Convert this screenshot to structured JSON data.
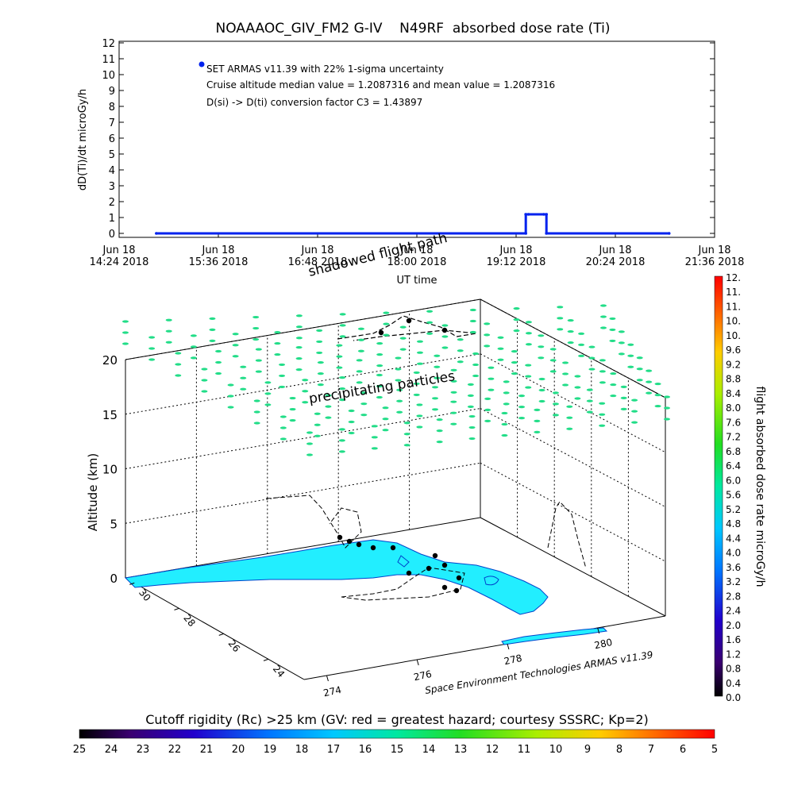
{
  "chart_data": [
    {
      "type": "line",
      "title": "NOAAAOC_GIV_FM2 G-IV    N49RF  absorbed dose rate (Ti)",
      "ylabel": "dD(Ti)/dt microGy/h",
      "xlabel": "UT time",
      "ylim": [
        0,
        12
      ],
      "yticks": [
        0,
        1,
        2,
        3,
        4,
        5,
        6,
        7,
        8,
        9,
        10,
        11,
        12
      ],
      "xlim": [
        0,
        432
      ],
      "xticks": [
        {
          "minute": 0,
          "line1": "Jun 18",
          "line2": "14:24 2018"
        },
        {
          "minute": 72,
          "line1": "Jun 18",
          "line2": "15:36 2018"
        },
        {
          "minute": 144,
          "line1": "Jun 18",
          "line2": "16:48 2018"
        },
        {
          "minute": 216,
          "line1": "Jun 18",
          "line2": "18:00 2018"
        },
        {
          "minute": 288,
          "line1": "Jun 18",
          "line2": "19:12 2018"
        },
        {
          "minute": 360,
          "line1": "Jun 18",
          "line2": "20:24 2018"
        },
        {
          "minute": 432,
          "line1": "Jun 18",
          "line2": "21:36 2018"
        }
      ],
      "series": [
        {
          "color": "#0022ee",
          "x": [
            27,
            295,
            295,
            297,
            308,
            310,
            310,
            399
          ],
          "y": [
            0,
            0,
            1.2,
            1.2,
            1.2,
            1.2,
            0,
            0
          ]
        }
      ],
      "annotations": [
        "SET ARMAS v11.39 with 22% 1-sigma uncertainty",
        "Cruise altitude median value = 1.2087316 and mean value = 1.2087316",
        "D(si) -> D(ti) conversion factor C3 = 1.43897"
      ],
      "legend_marker_color": "#0022ee"
    },
    {
      "type": "scatter",
      "zlabel": "Altitude (km)",
      "zticks": [
        0,
        5,
        10,
        15,
        20
      ],
      "lat_ticks": [
        "30",
        "28",
        "26",
        "24"
      ],
      "lon_ticks": [
        "274",
        "276",
        "278",
        "280"
      ],
      "annotations": [
        "precipitating particles",
        "shadowed flight path"
      ],
      "credit": "Space Environment Technologies ARMAS v11.39",
      "particle_color": "#22dd88",
      "land_color": "#22eeff",
      "colorbar": {
        "label": "flight absorbed dose rate microGy/h",
        "ticks": [
          "12.",
          "11.",
          "11.",
          "10.",
          "10.",
          "9.6",
          "9.2",
          "8.8",
          "8.4",
          "8.0",
          "7.6",
          "7.2",
          "6.8",
          "6.4",
          "6.0",
          "5.6",
          "5.2",
          "4.8",
          "4.4",
          "4.0",
          "3.6",
          "3.2",
          "2.8",
          "2.4",
          "2.0",
          "1.6",
          "1.2",
          "0.8",
          "0.4",
          "0.0"
        ]
      }
    },
    {
      "type": "heatmap",
      "title": "Cutoff rigidity (Rc) >25 km (GV: red = greatest hazard; courtesy SSSRC; Kp=2)",
      "ticks": [
        "25",
        "24",
        "23",
        "22",
        "21",
        "20",
        "19",
        "18",
        "17",
        "16",
        "15",
        "14",
        "13",
        "12",
        "11",
        "10",
        "9",
        "8",
        "7",
        "6",
        "5"
      ]
    }
  ]
}
